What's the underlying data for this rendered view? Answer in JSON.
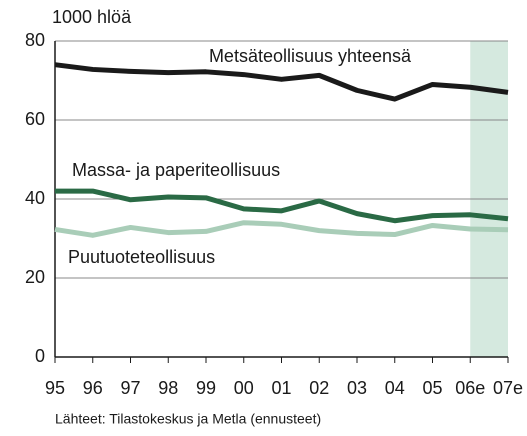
{
  "chart_data": {
    "type": "line",
    "y_unit_label": "1000 hlöä",
    "source": "Lähteet: Tilastokeskus ja Metla (ennusteet)",
    "categories": [
      "95",
      "96",
      "97",
      "98",
      "99",
      "00",
      "01",
      "02",
      "03",
      "04",
      "05",
      "06e",
      "07e"
    ],
    "series": [
      {
        "name": "Metsäteollisuus yhteensä",
        "color": "#1a1a1a",
        "values": [
          74,
          72.8,
          72.3,
          72,
          72.2,
          71.5,
          70.3,
          71.3,
          67.5,
          65.3,
          69,
          68.3,
          67
        ]
      },
      {
        "name": "Massa- ja paperiteollisuus",
        "color": "#2a6a45",
        "values": [
          42,
          42,
          39.8,
          40.5,
          40.3,
          37.5,
          37,
          39.5,
          36.3,
          34.5,
          35.8,
          36,
          35
        ]
      },
      {
        "name": "Puutuoteteollisuus",
        "color": "#a9cdb8",
        "values": [
          32.3,
          30.8,
          32.8,
          31.5,
          31.8,
          34,
          33.6,
          32,
          31.3,
          31,
          33.3,
          32.4,
          32.2
        ]
      }
    ],
    "ylim": [
      0,
      80
    ],
    "yticks": [
      0,
      20,
      40,
      60,
      80
    ],
    "grid": true
  }
}
